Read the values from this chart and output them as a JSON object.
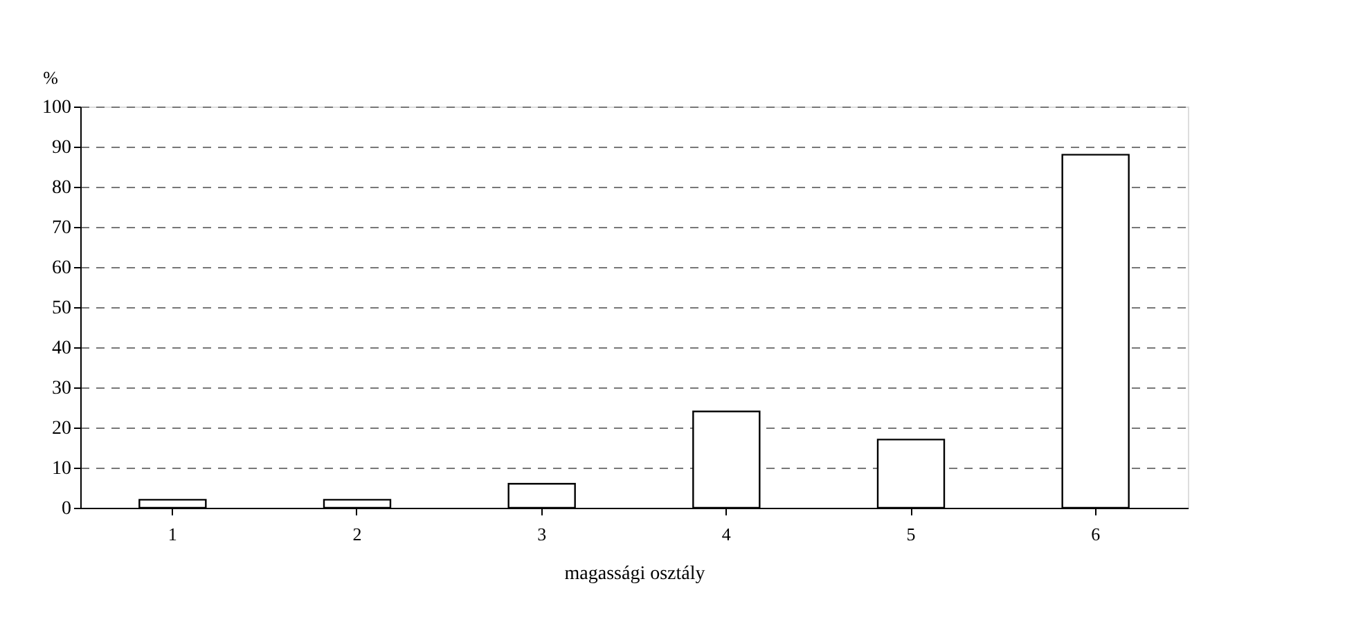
{
  "chart_data": {
    "type": "bar",
    "xlabel": "magassági osztály",
    "ylabel": "%",
    "categories": [
      "1",
      "2",
      "3",
      "4",
      "5",
      "6"
    ],
    "values": [
      2,
      2,
      6,
      24,
      17,
      88
    ],
    "color": "#ffffff",
    "ylim": [
      0,
      100
    ],
    "yticks": [
      0,
      10,
      20,
      30,
      40,
      50,
      60,
      70,
      80,
      90,
      100
    ],
    "grid": "y"
  }
}
